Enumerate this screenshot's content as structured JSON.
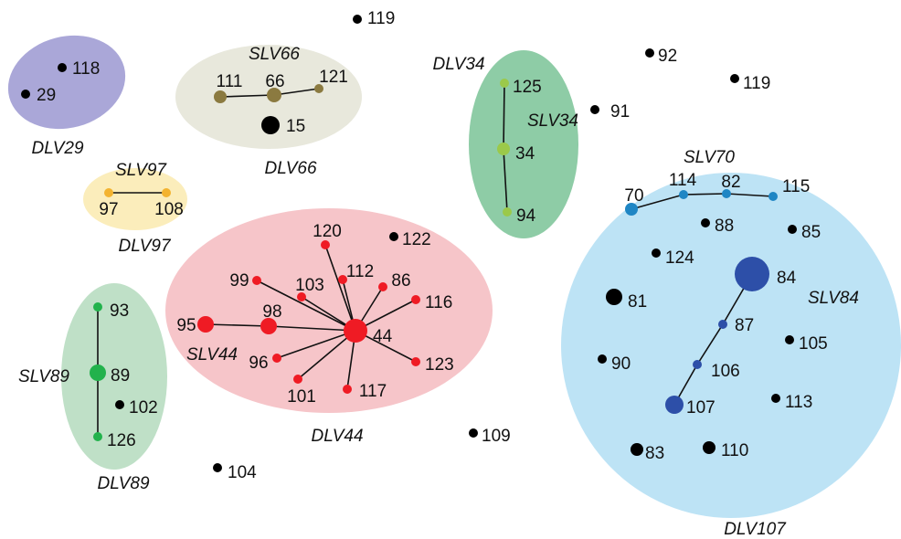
{
  "colors": {
    "black_node": "#000000",
    "dlv29": "#aaa7d8",
    "dlv66": "#e8e8dc",
    "dlv97": "#fbedbb",
    "dlv89": "#bfe0c7",
    "dlv44": "#f6c5c9",
    "dlv34": "#8ecca6",
    "dlv107": "#bde3f5",
    "slv66": "#8b7a40",
    "slv97": "#f3b330",
    "slv89": "#22b24c",
    "slv44": "#ef1b24",
    "slv34": "#9bc94a",
    "slv70": "#1f86c4",
    "slv84": "#2d4fa8"
  },
  "groups": [
    {
      "id": "dlv29",
      "label": "DLV29"
    },
    {
      "id": "dlv66",
      "label": "DLV66"
    },
    {
      "id": "dlv97",
      "label": "DLV97"
    },
    {
      "id": "dlv89",
      "label": "DLV89"
    },
    {
      "id": "dlv44",
      "label": "DLV44"
    },
    {
      "id": "dlv34",
      "label": "DLV34"
    },
    {
      "id": "dlv107",
      "label": "DLV107"
    }
  ],
  "subgroups": [
    {
      "id": "slv66",
      "label": "SLV66"
    },
    {
      "id": "slv97",
      "label": "SLV97"
    },
    {
      "id": "slv89",
      "label": "SLV89"
    },
    {
      "id": "slv44",
      "label": "SLV44"
    },
    {
      "id": "slv34",
      "label": "SLV34"
    },
    {
      "id": "slv70",
      "label": "SLV70"
    },
    {
      "id": "slv84",
      "label": "SLV84"
    }
  ],
  "nodes": [
    {
      "id": "119a",
      "label": "119",
      "color": "black_node"
    },
    {
      "id": "118",
      "label": "118",
      "color": "black_node"
    },
    {
      "id": "29",
      "label": "29",
      "color": "black_node"
    },
    {
      "id": "111",
      "label": "111",
      "color": "slv66"
    },
    {
      "id": "66",
      "label": "66",
      "color": "slv66"
    },
    {
      "id": "121",
      "label": "121",
      "color": "slv66"
    },
    {
      "id": "15",
      "label": "15",
      "color": "black_node"
    },
    {
      "id": "97",
      "label": "97",
      "color": "slv97"
    },
    {
      "id": "108",
      "label": "108",
      "color": "slv97"
    },
    {
      "id": "125",
      "label": "125",
      "color": "slv34"
    },
    {
      "id": "34",
      "label": "34",
      "color": "slv34"
    },
    {
      "id": "94",
      "label": "94",
      "color": "slv34"
    },
    {
      "id": "91",
      "label": "91",
      "color": "black_node"
    },
    {
      "id": "92",
      "label": "92",
      "color": "black_node"
    },
    {
      "id": "119b",
      "label": "119",
      "color": "black_node"
    },
    {
      "id": "120",
      "label": "120",
      "color": "slv44"
    },
    {
      "id": "112",
      "label": "112",
      "color": "slv44"
    },
    {
      "id": "86",
      "label": "86",
      "color": "slv44"
    },
    {
      "id": "99",
      "label": "99",
      "color": "slv44"
    },
    {
      "id": "103",
      "label": "103",
      "color": "slv44"
    },
    {
      "id": "116",
      "label": "116",
      "color": "slv44"
    },
    {
      "id": "98",
      "label": "98",
      "color": "slv44"
    },
    {
      "id": "95",
      "label": "95",
      "color": "slv44"
    },
    {
      "id": "44",
      "label": "44",
      "color": "slv44"
    },
    {
      "id": "96",
      "label": "96",
      "color": "slv44"
    },
    {
      "id": "123",
      "label": "123",
      "color": "slv44"
    },
    {
      "id": "101",
      "label": "101",
      "color": "slv44"
    },
    {
      "id": "117",
      "label": "117",
      "color": "slv44"
    },
    {
      "id": "122",
      "label": "122",
      "color": "black_node"
    },
    {
      "id": "93",
      "label": "93",
      "color": "slv89"
    },
    {
      "id": "89",
      "label": "89",
      "color": "slv89"
    },
    {
      "id": "102",
      "label": "102",
      "color": "black_node"
    },
    {
      "id": "126",
      "label": "126",
      "color": "slv89"
    },
    {
      "id": "104",
      "label": "104",
      "color": "black_node"
    },
    {
      "id": "109",
      "label": "109",
      "color": "black_node"
    },
    {
      "id": "70",
      "label": "70",
      "color": "slv70"
    },
    {
      "id": "114",
      "label": "114",
      "color": "slv70"
    },
    {
      "id": "82",
      "label": "82",
      "color": "slv70"
    },
    {
      "id": "115",
      "label": "115",
      "color": "slv70"
    },
    {
      "id": "88",
      "label": "88",
      "color": "black_node"
    },
    {
      "id": "85",
      "label": "85",
      "color": "black_node"
    },
    {
      "id": "124",
      "label": "124",
      "color": "black_node"
    },
    {
      "id": "84",
      "label": "84",
      "color": "slv84"
    },
    {
      "id": "81",
      "label": "81",
      "color": "black_node"
    },
    {
      "id": "87",
      "label": "87",
      "color": "slv84"
    },
    {
      "id": "105",
      "label": "105",
      "color": "black_node"
    },
    {
      "id": "90",
      "label": "90",
      "color": "black_node"
    },
    {
      "id": "106",
      "label": "106",
      "color": "slv84"
    },
    {
      "id": "107",
      "label": "107",
      "color": "slv84"
    },
    {
      "id": "113",
      "label": "113",
      "color": "black_node"
    },
    {
      "id": "83",
      "label": "83",
      "color": "black_node"
    },
    {
      "id": "110",
      "label": "110",
      "color": "black_node"
    }
  ],
  "edges": [
    [
      "111",
      "66"
    ],
    [
      "66",
      "121"
    ],
    [
      "97",
      "108"
    ],
    [
      "125",
      "34"
    ],
    [
      "34",
      "94"
    ],
    [
      "93",
      "89"
    ],
    [
      "89",
      "126"
    ],
    [
      "95",
      "98"
    ],
    [
      "98",
      "44"
    ],
    [
      "120",
      "44"
    ],
    [
      "112",
      "44"
    ],
    [
      "86",
      "44"
    ],
    [
      "99",
      "44"
    ],
    [
      "103",
      "44"
    ],
    [
      "116",
      "44"
    ],
    [
      "96",
      "44"
    ],
    [
      "123",
      "44"
    ],
    [
      "101",
      "44"
    ],
    [
      "117",
      "44"
    ],
    [
      "70",
      "114"
    ],
    [
      "114",
      "82"
    ],
    [
      "82",
      "115"
    ],
    [
      "84",
      "87"
    ],
    [
      "87",
      "106"
    ],
    [
      "106",
      "107"
    ]
  ]
}
